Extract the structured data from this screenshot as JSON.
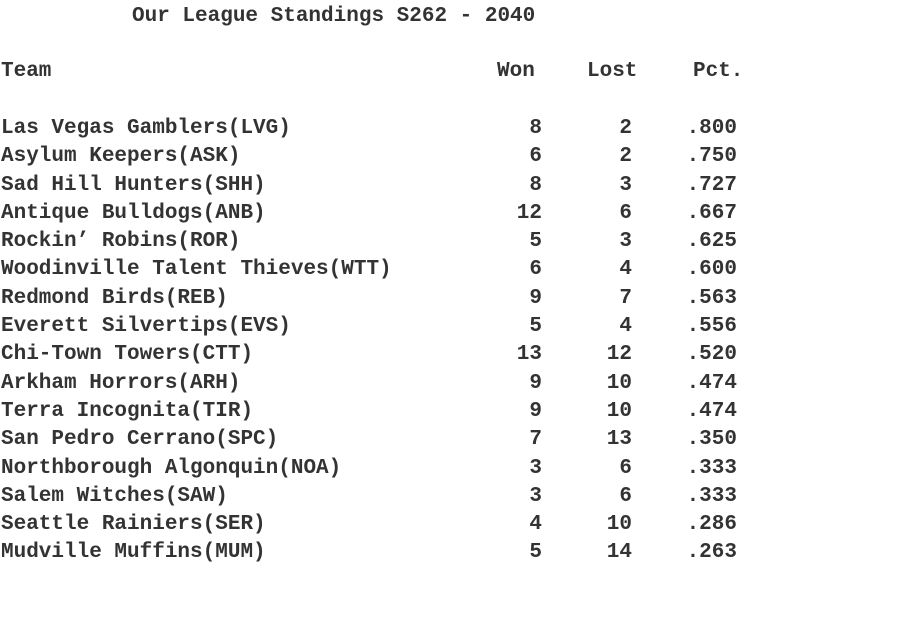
{
  "title": "Our League Standings S262 - 2040",
  "headers": {
    "team": "Team",
    "won": "Won",
    "lost": "Lost",
    "pct": "Pct."
  },
  "rows": [
    {
      "team": "Las Vegas Gamblers(LVG)",
      "won": "8",
      "lost": "2",
      "pct": ".800"
    },
    {
      "team": "Asylum Keepers(ASK)",
      "won": "6",
      "lost": "2",
      "pct": ".750"
    },
    {
      "team": "Sad Hill Hunters(SHH)",
      "won": "8",
      "lost": "3",
      "pct": ".727"
    },
    {
      "team": "Antique Bulldogs(ANB)",
      "won": "12",
      "lost": "6",
      "pct": ".667"
    },
    {
      "team": "Rockin’ Robins(ROR)",
      "won": "5",
      "lost": "3",
      "pct": ".625"
    },
    {
      "team": "Woodinville Talent Thieves(WTT)",
      "won": "6",
      "lost": "4",
      "pct": ".600"
    },
    {
      "team": "Redmond Birds(REB)",
      "won": "9",
      "lost": "7",
      "pct": ".563"
    },
    {
      "team": "Everett Silvertips(EVS)",
      "won": "5",
      "lost": "4",
      "pct": ".556"
    },
    {
      "team": "Chi-Town Towers(CTT)",
      "won": "13",
      "lost": "12",
      "pct": ".520"
    },
    {
      "team": "Arkham Horrors(ARH)",
      "won": "9",
      "lost": "10",
      "pct": ".474"
    },
    {
      "team": "Terra Incognita(TIR)",
      "won": "9",
      "lost": "10",
      "pct": ".474"
    },
    {
      "team": "San Pedro Cerrano(SPC)",
      "won": "7",
      "lost": "13",
      "pct": ".350"
    },
    {
      "team": "Northborough Algonquin(NOA)",
      "won": "3",
      "lost": "6",
      "pct": ".333"
    },
    {
      "team": "Salem Witches(SAW)",
      "won": "3",
      "lost": "6",
      "pct": ".333"
    },
    {
      "team": "Seattle Rainiers(SER)",
      "won": "4",
      "lost": "10",
      "pct": ".286"
    },
    {
      "team": "Mudville Muffins(MUM)",
      "won": "5",
      "lost": "14",
      "pct": ".263"
    }
  ]
}
